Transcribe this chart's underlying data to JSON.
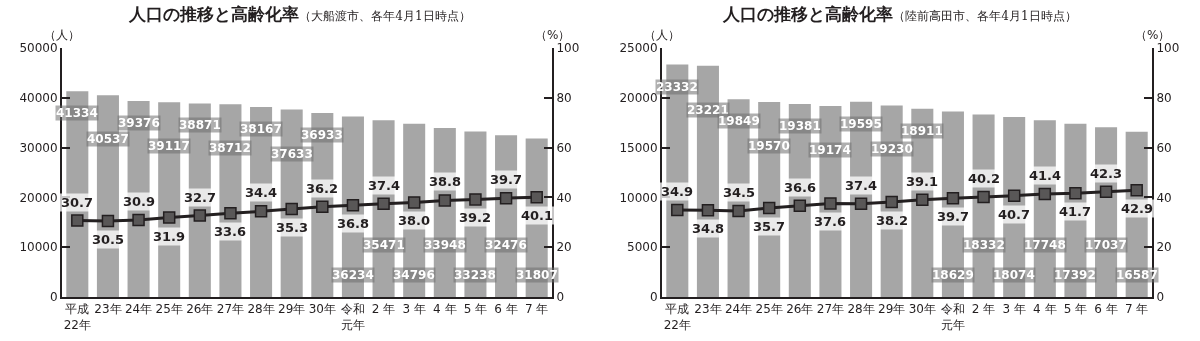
{
  "chart_data": [
    {
      "type": "bar",
      "title": "人口の推移と高齢化率",
      "subtitle": "（大船渡市、各年4月1日時点）",
      "ylabel": "（人）",
      "y2label": "（%）",
      "categories": [
        "平成22年",
        "23年",
        "24年",
        "25年",
        "26年",
        "27年",
        "28年",
        "29年",
        "30年",
        "令和元年",
        "2 年",
        "3 年",
        "4 年",
        "5 年",
        "6 年",
        "7 年"
      ],
      "series": [
        {
          "color": "#a6a6a6",
          "values": [
            41334,
            40537,
            39376,
            39117,
            38871,
            38712,
            38167,
            37633,
            36933,
            36234,
            35471,
            34796,
            33948,
            33238,
            32476,
            31807
          ],
          "value_labels": [
            "41334",
            "40537",
            "39376",
            "39117",
            "38871",
            "38712",
            "38167",
            "37633",
            "36933",
            "36234",
            "35471",
            "34796",
            "33948",
            "33238",
            "32476",
            "31807"
          ]
        },
        {
          "type": "line",
          "axis": "y2",
          "color": "#231f20",
          "values": [
            30.7,
            30.5,
            30.9,
            31.9,
            32.7,
            33.6,
            34.4,
            35.3,
            36.2,
            36.8,
            37.4,
            38.0,
            38.8,
            39.2,
            39.7,
            40.1
          ],
          "value_labels": [
            "30.7",
            "30.5",
            "30.9",
            "31.9",
            "32.7",
            "33.6",
            "34.4",
            "35.3",
            "36.2",
            "36.8",
            "37.4",
            "38.0",
            "38.8",
            "39.2",
            "39.7",
            "40.1"
          ]
        }
      ],
      "ylim": [
        0,
        50000
      ],
      "yticks": [
        0,
        10000,
        20000,
        30000,
        40000,
        50000
      ],
      "y2lim": [
        0,
        100
      ],
      "y2ticks": [
        0,
        20,
        40,
        60,
        80,
        100
      ],
      "marker": "square"
    },
    {
      "type": "bar",
      "title": "人口の推移と高齢化率",
      "subtitle": "（陸前高田市、各年4月1日時点）",
      "ylabel": "（人）",
      "y2label": "（%）",
      "categories": [
        "平成22年",
        "23年",
        "24年",
        "25年",
        "26年",
        "27年",
        "28年",
        "29年",
        "30年",
        "令和元年",
        "2 年",
        "3 年",
        "4 年",
        "5 年",
        "6 年",
        "7 年"
      ],
      "series": [
        {
          "color": "#a6a6a6",
          "values": [
            23332,
            23221,
            19849,
            19570,
            19381,
            19174,
            19595,
            19230,
            18911,
            18629,
            18332,
            18074,
            17748,
            17392,
            17037,
            16587
          ],
          "value_labels": [
            "23332",
            "23221",
            "19849",
            "19570",
            "19381",
            "19174",
            "19595",
            "19230",
            "18911",
            "18629",
            "18332",
            "18074",
            "17748",
            "17392",
            "17037",
            "16587"
          ]
        },
        {
          "type": "line",
          "axis": "y2",
          "color": "#231f20",
          "values": [
            34.9,
            34.8,
            34.5,
            35.7,
            36.6,
            37.6,
            37.4,
            38.2,
            39.1,
            39.7,
            40.2,
            40.7,
            41.4,
            41.7,
            42.3,
            42.9
          ],
          "value_labels": [
            "34.9",
            "34.8",
            "34.5",
            "35.7",
            "36.6",
            "37.6",
            "37.4",
            "38.2",
            "39.1",
            "39.7",
            "40.2",
            "40.7",
            "41.4",
            "41.7",
            "42.3",
            "42.9"
          ]
        }
      ],
      "ylim": [
        0,
        25000
      ],
      "yticks": [
        0,
        5000,
        10000,
        15000,
        20000,
        25000
      ],
      "y2lim": [
        0,
        100
      ],
      "y2ticks": [
        0,
        20,
        40,
        60,
        80,
        100
      ],
      "marker": "square"
    }
  ]
}
